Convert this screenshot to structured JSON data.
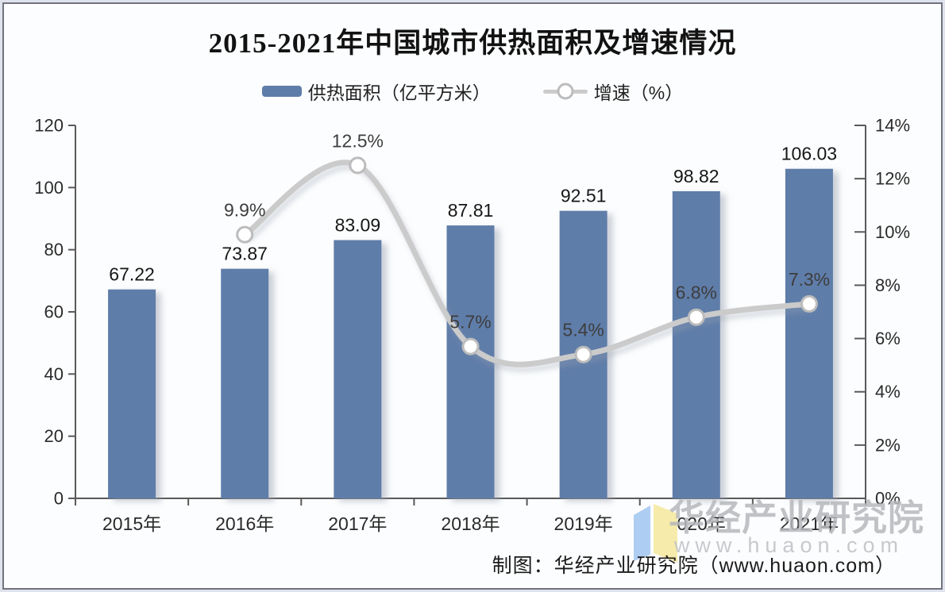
{
  "page": {
    "footer_credit": "制图：华经产业研究院（www.huaon.com）",
    "watermark": {
      "name": "华经产业研究院",
      "url": "www.huaon.com",
      "logo_colors": {
        "left_page": "#aecdf2",
        "right_page": "#f6ebaa"
      }
    }
  },
  "chart_data": {
    "type": "bar",
    "subtype": "bar+line combo, dual axis",
    "title": "2015-2021年中国城市供热面积及增速情况",
    "categories": [
      "2015年",
      "2016年",
      "2017年",
      "2018年",
      "2019年",
      "2020年",
      "2021年"
    ],
    "series": [
      {
        "name": "供热面积（亿平方米）",
        "type": "bar",
        "axis": "left",
        "values": [
          67.22,
          73.87,
          83.09,
          87.81,
          92.51,
          98.82,
          106.03
        ],
        "labels": [
          "67.22",
          "73.87",
          "83.09",
          "87.81",
          "92.51",
          "98.82",
          "106.03"
        ],
        "color": "#5f7da9"
      },
      {
        "name": "增速（%）",
        "type": "line",
        "axis": "right",
        "values": [
          null,
          9.9,
          12.5,
          5.7,
          5.4,
          6.8,
          7.3
        ],
        "labels": [
          "",
          "9.9%",
          "12.5%",
          "5.7%",
          "5.4%",
          "6.8%",
          "7.3%"
        ],
        "color": "#cbcbcb",
        "marker_fill": "#ffffff",
        "marker_stroke": "#bcbcbc"
      }
    ],
    "left_axis": {
      "min": 0,
      "max": 120,
      "ticks": [
        "0",
        "20",
        "40",
        "60",
        "80",
        "100",
        "120"
      ]
    },
    "right_axis": {
      "min": 0,
      "max": 14,
      "ticks": [
        "0%",
        "2%",
        "4%",
        "6%",
        "8%",
        "10%",
        "12%",
        "14%"
      ]
    },
    "grid": false,
    "legend_position": "top",
    "axis_color": "#595959",
    "bar_label_color": "#161616",
    "line_label_color": "#3d3d3d",
    "tick_label_color": "#2a2a2a"
  }
}
